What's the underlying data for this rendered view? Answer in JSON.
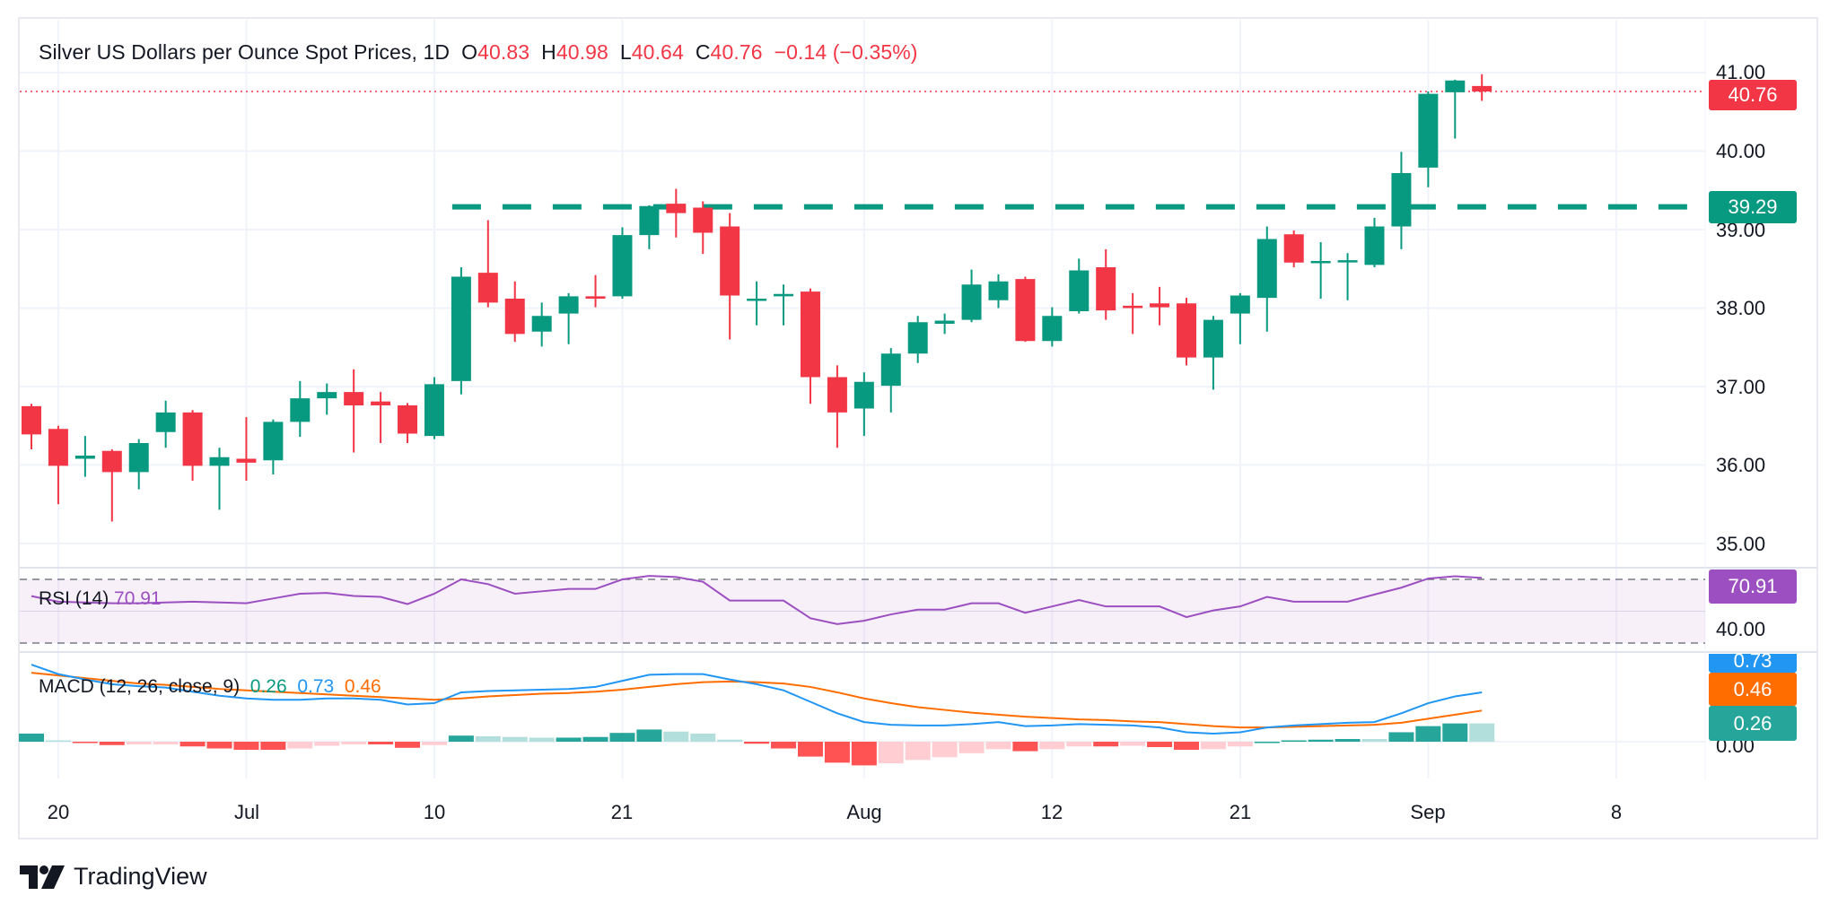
{
  "header": {
    "title": "Silver US Dollars per Ounce Spot Prices, 1D",
    "o_label": "O",
    "o": "40.83",
    "h_label": "H",
    "h": "40.98",
    "l_label": "L",
    "l": "40.64",
    "c_label": "C",
    "c": "40.76",
    "change": "−0.14 (−0.35%)"
  },
  "rsi_legend": {
    "label": "RSI (14)",
    "value": "70.91"
  },
  "macd_legend": {
    "label": "MACD (12, 26, close, 9)",
    "hist": "0.26",
    "macd": "0.73",
    "signal": "0.46"
  },
  "price_axis": [
    "41.00",
    "40.00",
    "39.00",
    "38.00",
    "37.00",
    "36.00",
    "35.00"
  ],
  "badges": {
    "last_price": "40.76",
    "level": "39.29",
    "rsi": "70.91",
    "rsi_axis": "40.00",
    "macd": "0.73",
    "signal": "0.46",
    "hist": "0.26",
    "macd_axis": "0.00"
  },
  "time_axis": [
    "20",
    "Jul",
    "10",
    "21",
    "Aug",
    "12",
    "21",
    "Sep",
    "8"
  ],
  "brand": "TradingView",
  "colors": {
    "up": "#089981",
    "down": "#f23645",
    "rsi": "#9c4fc0",
    "macd": "#2196f3",
    "signal": "#ff6d00",
    "level": "#089981"
  },
  "chart_data": {
    "type": "candlestick",
    "title": "Silver US Dollars per Ounce Spot Prices, 1D",
    "ylim": [
      35,
      41
    ],
    "horizontal_level": 39.29,
    "last_price": 40.76,
    "ohlc": [
      [
        36.75,
        36.78,
        36.2,
        36.39
      ],
      [
        36.46,
        36.5,
        35.5,
        35.99
      ],
      [
        36.08,
        36.37,
        35.85,
        36.12
      ],
      [
        36.18,
        36.2,
        35.28,
        35.91
      ],
      [
        35.91,
        36.33,
        35.69,
        36.28
      ],
      [
        36.42,
        36.82,
        36.22,
        36.67
      ],
      [
        36.67,
        36.7,
        35.8,
        35.99
      ],
      [
        35.99,
        36.22,
        35.43,
        36.1
      ],
      [
        36.08,
        36.61,
        35.8,
        36.03
      ],
      [
        36.06,
        36.58,
        35.88,
        36.55
      ],
      [
        36.55,
        37.07,
        36.36,
        36.85
      ],
      [
        36.85,
        37.04,
        36.64,
        36.93
      ],
      [
        36.93,
        37.22,
        36.16,
        36.76
      ],
      [
        36.81,
        36.93,
        36.28,
        36.76
      ],
      [
        36.76,
        36.79,
        36.28,
        36.4
      ],
      [
        36.37,
        37.12,
        36.33,
        37.03
      ],
      [
        37.07,
        38.52,
        36.9,
        38.4
      ],
      [
        38.45,
        39.12,
        38.01,
        38.07
      ],
      [
        38.12,
        38.34,
        37.57,
        37.67
      ],
      [
        37.7,
        38.07,
        37.51,
        37.9
      ],
      [
        37.93,
        38.19,
        37.54,
        38.15
      ],
      [
        38.15,
        38.42,
        38.01,
        38.12
      ],
      [
        38.15,
        39.03,
        38.12,
        38.93
      ],
      [
        38.93,
        39.31,
        38.75,
        39.3
      ],
      [
        39.33,
        39.52,
        38.9,
        39.21
      ],
      [
        39.28,
        39.36,
        38.69,
        38.96
      ],
      [
        39.04,
        39.21,
        37.6,
        38.16
      ],
      [
        38.1,
        38.34,
        37.78,
        38.12
      ],
      [
        38.15,
        38.3,
        37.78,
        38.18
      ],
      [
        38.21,
        38.25,
        36.78,
        37.12
      ],
      [
        37.12,
        37.27,
        36.22,
        36.67
      ],
      [
        36.72,
        37.18,
        36.37,
        37.06
      ],
      [
        37.01,
        37.49,
        36.67,
        37.42
      ],
      [
        37.42,
        37.9,
        37.3,
        37.82
      ],
      [
        37.8,
        37.93,
        37.67,
        37.84
      ],
      [
        37.85,
        38.49,
        37.82,
        38.3
      ],
      [
        38.1,
        38.43,
        38.0,
        38.34
      ],
      [
        38.37,
        38.4,
        37.57,
        37.58
      ],
      [
        37.58,
        38.01,
        37.51,
        37.9
      ],
      [
        37.96,
        38.63,
        37.93,
        38.48
      ],
      [
        38.52,
        38.75,
        37.85,
        37.97
      ],
      [
        38.03,
        38.19,
        37.67,
        38.0
      ],
      [
        38.06,
        38.27,
        37.78,
        38.01
      ],
      [
        38.06,
        38.13,
        37.27,
        37.37
      ],
      [
        37.37,
        37.9,
        36.96,
        37.85
      ],
      [
        37.93,
        38.19,
        37.54,
        38.16
      ],
      [
        38.13,
        39.04,
        37.7,
        38.88
      ],
      [
        38.94,
        38.99,
        38.52,
        38.58
      ],
      [
        38.58,
        38.84,
        38.12,
        38.6
      ],
      [
        38.6,
        38.7,
        38.1,
        38.61
      ],
      [
        38.55,
        39.15,
        38.52,
        39.04
      ],
      [
        39.04,
        39.99,
        38.75,
        39.72
      ],
      [
        39.79,
        40.76,
        39.54,
        40.73
      ],
      [
        40.75,
        40.91,
        40.16,
        40.9
      ],
      [
        40.83,
        40.98,
        40.64,
        40.76
      ]
    ],
    "rsi": {
      "name": "RSI (14)",
      "overbought": 70,
      "oversold": 30,
      "values": [
        59.5,
        56,
        55.5,
        55,
        55,
        55.5,
        56,
        55.5,
        55,
        58,
        61,
        61.5,
        59.6,
        59,
        54.5,
        61,
        70,
        67,
        61,
        62.5,
        64,
        64,
        70,
        72.2,
        71.5,
        68.5,
        56.7,
        56.7,
        56.7,
        45.6,
        41.9,
        44,
        48,
        51,
        51,
        55,
        55,
        49,
        53,
        57,
        53,
        53,
        53,
        46.3,
        50.5,
        53,
        59,
        56,
        56,
        56,
        60.5,
        64.8,
        70.5,
        72,
        70.91
      ]
    },
    "macd": {
      "name": "MACD (12, 26, close, 9)",
      "macd": [
        1.14,
        1.0,
        0.92,
        0.85,
        0.82,
        0.8,
        0.74,
        0.68,
        0.64,
        0.62,
        0.62,
        0.64,
        0.64,
        0.62,
        0.55,
        0.57,
        0.73,
        0.75,
        0.76,
        0.77,
        0.78,
        0.81,
        0.9,
        0.99,
        1.0,
        1.0,
        0.92,
        0.85,
        0.76,
        0.59,
        0.42,
        0.29,
        0.25,
        0.24,
        0.24,
        0.26,
        0.29,
        0.23,
        0.24,
        0.26,
        0.25,
        0.24,
        0.21,
        0.14,
        0.12,
        0.14,
        0.21,
        0.24,
        0.26,
        0.28,
        0.29,
        0.42,
        0.57,
        0.67,
        0.73
      ],
      "signal": [
        1.02,
        0.98,
        0.94,
        0.9,
        0.86,
        0.84,
        0.81,
        0.78,
        0.76,
        0.74,
        0.72,
        0.7,
        0.68,
        0.66,
        0.64,
        0.62,
        0.64,
        0.67,
        0.69,
        0.71,
        0.72,
        0.74,
        0.77,
        0.81,
        0.85,
        0.88,
        0.89,
        0.88,
        0.86,
        0.81,
        0.73,
        0.64,
        0.57,
        0.51,
        0.47,
        0.43,
        0.4,
        0.37,
        0.35,
        0.33,
        0.32,
        0.3,
        0.29,
        0.26,
        0.23,
        0.21,
        0.21,
        0.22,
        0.23,
        0.24,
        0.25,
        0.28,
        0.34,
        0.4,
        0.46
      ]
    }
  }
}
